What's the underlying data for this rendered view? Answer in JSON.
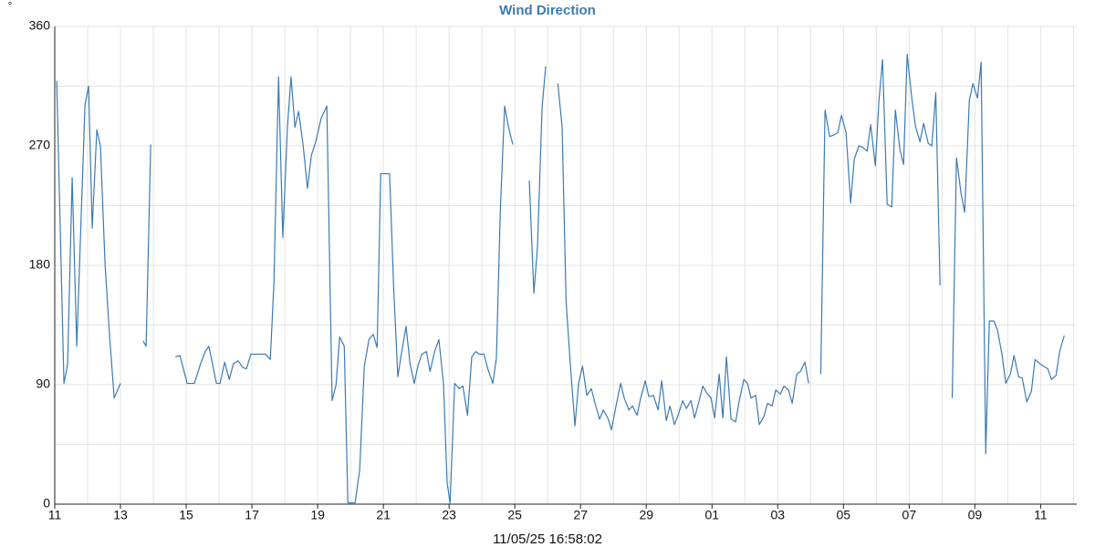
{
  "chart_data": {
    "type": "line",
    "title": "Wind Direction",
    "y_label": "°",
    "x_label": "11/05/25 16:58:02",
    "color": "#3b7ab3",
    "grid": true,
    "ylim": [
      0,
      360
    ],
    "yticks": [
      0,
      90,
      180,
      270,
      360
    ],
    "minor_yticks": [
      45,
      135,
      225,
      315
    ],
    "xlim": [
      0,
      31.1
    ],
    "xticks": [
      {
        "value": 0,
        "label": "11"
      },
      {
        "value": 2,
        "label": "13"
      },
      {
        "value": 4,
        "label": "15"
      },
      {
        "value": 6,
        "label": "17"
      },
      {
        "value": 8,
        "label": "19"
      },
      {
        "value": 10,
        "label": "21"
      },
      {
        "value": 12,
        "label": "23"
      },
      {
        "value": 14,
        "label": "25"
      },
      {
        "value": 16,
        "label": "27"
      },
      {
        "value": 18,
        "label": "29"
      },
      {
        "value": 20,
        "label": "01"
      },
      {
        "value": 22,
        "label": "03"
      },
      {
        "value": 24,
        "label": "05"
      },
      {
        "value": 26,
        "label": "07"
      },
      {
        "value": 28,
        "label": "09"
      },
      {
        "value": 30,
        "label": "11"
      }
    ],
    "minor_xticks": [
      1,
      3,
      5,
      7,
      9,
      11,
      13,
      15,
      17,
      19,
      21,
      23,
      25,
      27,
      29,
      31
    ],
    "x": [
      0.06,
      0.28,
      0.39,
      0.53,
      0.67,
      0.92,
      1.03,
      1.14,
      1.28,
      1.39,
      1.53,
      1.67,
      1.81,
      2.0,
      null,
      2.69,
      2.78,
      2.92,
      null,
      3.67,
      3.81,
      4.03,
      4.25,
      4.44,
      4.58,
      4.69,
      4.92,
      5.03,
      5.17,
      5.31,
      5.44,
      5.58,
      5.72,
      5.83,
      5.97,
      6.19,
      6.42,
      6.56,
      6.67,
      6.81,
      6.94,
      7.08,
      7.19,
      7.31,
      7.42,
      7.56,
      7.69,
      7.81,
      7.94,
      8.11,
      8.28,
      8.44,
      8.56,
      8.67,
      8.81,
      8.92,
      9.14,
      9.28,
      9.42,
      9.56,
      9.69,
      9.81,
      9.92,
      10.19,
      10.31,
      10.44,
      10.56,
      10.69,
      10.81,
      10.94,
      11.06,
      11.17,
      11.31,
      11.42,
      11.56,
      11.69,
      11.83,
      11.94,
      12.03,
      12.17,
      12.31,
      12.42,
      12.56,
      12.69,
      12.81,
      12.92,
      13.06,
      13.19,
      13.33,
      13.44,
      13.56,
      13.69,
      13.81,
      13.94,
      null,
      14.44,
      14.58,
      14.69,
      14.83,
      14.94,
      null,
      15.31,
      15.44,
      15.56,
      15.69,
      15.83,
      15.94,
      16.06,
      16.19,
      16.33,
      16.44,
      16.58,
      16.69,
      16.83,
      16.94,
      17.08,
      17.22,
      17.33,
      17.47,
      17.58,
      17.72,
      17.83,
      17.97,
      18.08,
      18.22,
      18.36,
      18.47,
      18.61,
      18.72,
      18.86,
      18.97,
      19.11,
      19.22,
      19.36,
      19.47,
      19.61,
      19.72,
      19.86,
      19.97,
      20.08,
      20.22,
      20.33,
      20.44,
      20.58,
      20.72,
      20.83,
      20.97,
      21.08,
      21.19,
      21.33,
      21.44,
      21.58,
      21.69,
      21.83,
      21.94,
      22.08,
      22.19,
      22.33,
      22.44,
      22.58,
      22.69,
      22.83,
      22.94,
      null,
      23.31,
      23.44,
      23.58,
      23.69,
      23.83,
      23.94,
      24.08,
      24.22,
      24.33,
      24.47,
      24.58,
      24.72,
      24.83,
      24.97,
      25.08,
      25.19,
      25.33,
      25.47,
      25.58,
      25.72,
      25.83,
      25.94,
      26.08,
      26.19,
      26.33,
      26.44,
      26.58,
      26.69,
      26.81,
      26.94,
      null,
      27.31,
      27.44,
      27.58,
      27.69,
      27.83,
      27.94,
      28.08,
      28.19,
      28.33,
      28.44,
      28.58,
      28.69,
      28.83,
      28.94,
      29.08,
      29.19,
      29.33,
      29.44,
      29.58,
      29.72,
      29.83,
      29.97,
      30.08,
      30.22,
      30.33,
      30.47,
      30.58,
      30.72
    ],
    "values": [
      319,
      91,
      105,
      246,
      119,
      301,
      315,
      208,
      282,
      270,
      181,
      126,
      80,
      91,
      null,
      123,
      119,
      271,
      null,
      111,
      112,
      91,
      91,
      106,
      115,
      119,
      91,
      91,
      107,
      94,
      106,
      108,
      103,
      102,
      113,
      113,
      113,
      109,
      167,
      322,
      201,
      284,
      322,
      284,
      296,
      270,
      238,
      263,
      273,
      291,
      300,
      78,
      90,
      126,
      119,
      1,
      1,
      26,
      104,
      124,
      128,
      118,
      249,
      249,
      165,
      96,
      115,
      134,
      106,
      91,
      105,
      113,
      115,
      100,
      115,
      124,
      91,
      16,
      1,
      91,
      87,
      89,
      67,
      111,
      115,
      113,
      113,
      101,
      91,
      110,
      222,
      300,
      284,
      271,
      null,
      244,
      159,
      194,
      299,
      330,
      null,
      317,
      284,
      153,
      105,
      59,
      91,
      104,
      82,
      87,
      76,
      64,
      71,
      65,
      56,
      74,
      91,
      80,
      71,
      74,
      67,
      80,
      93,
      81,
      82,
      71,
      93,
      63,
      74,
      60,
      67,
      78,
      72,
      78,
      65,
      78,
      89,
      83,
      80,
      65,
      98,
      65,
      111,
      64,
      62,
      78,
      94,
      91,
      80,
      82,
      60,
      66,
      76,
      74,
      86,
      83,
      89,
      86,
      76,
      98,
      100,
      107,
      91,
      null,
      98,
      297,
      277,
      278,
      280,
      293,
      280,
      227,
      260,
      270,
      269,
      266,
      286,
      255,
      304,
      335,
      226,
      224,
      297,
      267,
      256,
      339,
      306,
      285,
      273,
      287,
      272,
      270,
      310,
      165,
      null,
      80,
      261,
      234,
      220,
      304,
      317,
      306,
      333,
      38,
      138,
      138,
      131,
      112,
      91,
      98,
      112,
      96,
      95,
      77,
      85,
      109,
      106,
      104,
      102,
      94,
      97,
      115,
      127
    ]
  }
}
